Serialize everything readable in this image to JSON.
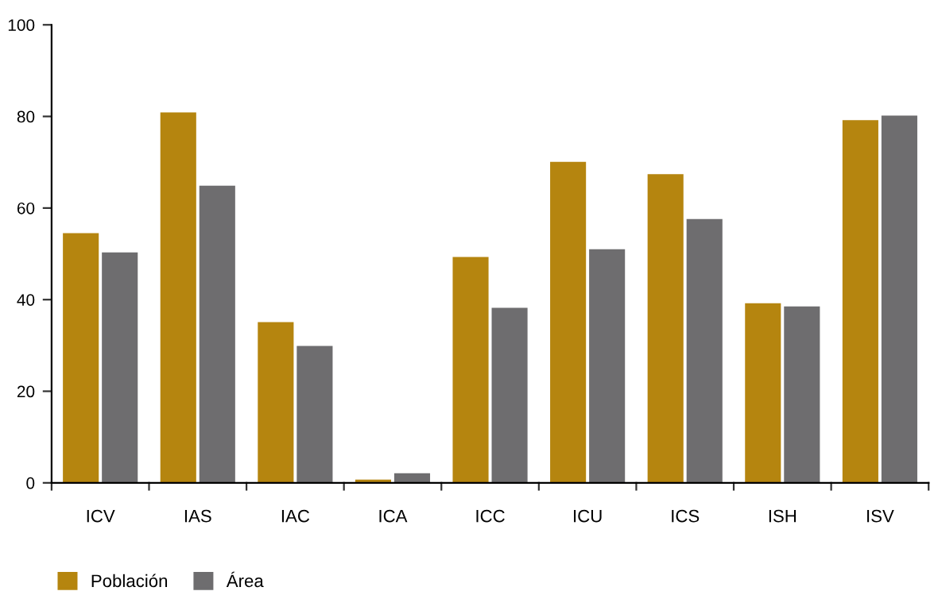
{
  "chart_data": {
    "type": "bar",
    "categories": [
      "ICV",
      "IAS",
      "IAC",
      "ICA",
      "ICC",
      "ICU",
      "ICS",
      "ISH",
      "ISV"
    ],
    "series": [
      {
        "name": "Población",
        "color": "#b5850f",
        "values": [
          54.5,
          80.9,
          35.1,
          0.7,
          49.3,
          70.1,
          67.4,
          39.2,
          79.2
        ]
      },
      {
        "name": "Área",
        "color": "#6e6d6f",
        "values": [
          50.3,
          64.9,
          29.9,
          2.1,
          38.2,
          51.0,
          57.6,
          38.5,
          80.2
        ]
      }
    ],
    "ylim": [
      0,
      100
    ],
    "yticks": [
      0,
      20,
      40,
      60,
      80,
      100
    ],
    "grid": false,
    "legend": "bottom left"
  }
}
